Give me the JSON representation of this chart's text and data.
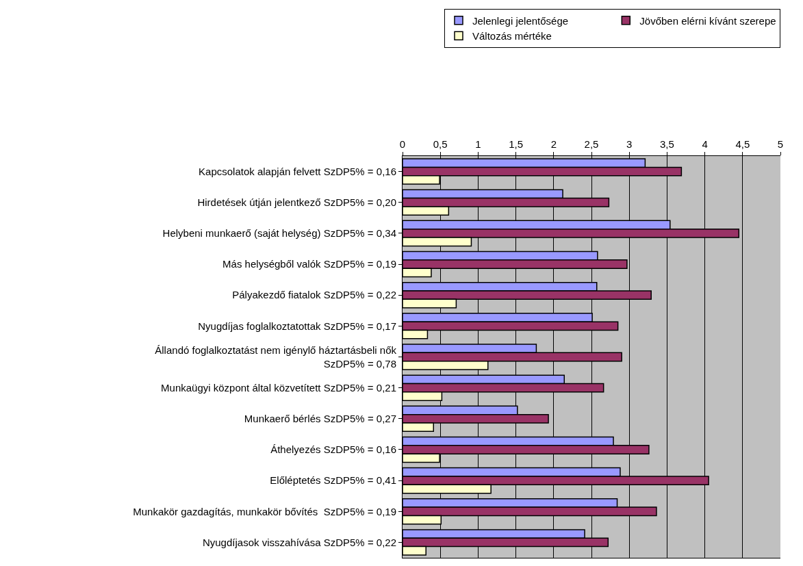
{
  "chart_data": {
    "type": "bar",
    "orientation": "horizontal",
    "categories": [
      "Kapcsolatok alapján felvett SzDP5% = 0,16",
      "Hirdetések útján jelentkező SzDP5% = 0,20",
      "Helybeni munkaerő (saját helység) SzDP5% = 0,34",
      "Más helységből valók SzDP5% = 0,19",
      "Pályakezdő fiatalok SzDP5% = 0,22",
      "Nyugdíjas foglalkoztatottak SzDP5% = 0,17",
      "Állandó foglalkoztatást nem igénylő háztartásbeli nők\nSzDP5% = 0,78",
      "Munkaügyi központ által közvetített SzDP5% = 0,21",
      "Munkaerő bérlés SzDP5% = 0,27",
      "Áthelyezés SzDP5% = 0,16",
      "Előléptetés SzDP5% = 0,41",
      "Munkakör gazdagítás, munkakör bővítés  SzDP5% = 0,19",
      "Nyugdíjasok visszahívása SzDP5% = 0,22"
    ],
    "series": [
      {
        "name": "Jelenlegi jelentősége",
        "color": "#9999ff",
        "values": [
          3.21,
          2.12,
          3.54,
          2.58,
          2.57,
          2.51,
          1.77,
          2.14,
          1.52,
          2.79,
          2.88,
          2.84,
          2.41
        ]
      },
      {
        "name": "Jövőben elérni kívánt szerepe",
        "color": "#993366",
        "values": [
          3.69,
          2.73,
          4.45,
          2.97,
          3.29,
          2.85,
          2.9,
          2.66,
          1.93,
          3.26,
          4.05,
          3.36,
          2.72
        ]
      },
      {
        "name": "Változás mértéke",
        "color": "#ffffcc",
        "values": [
          0.49,
          0.61,
          0.91,
          0.38,
          0.71,
          0.33,
          1.13,
          0.52,
          0.41,
          0.49,
          1.17,
          0.51,
          0.31
        ]
      }
    ],
    "xlim": [
      0,
      5
    ],
    "xticks": [
      0,
      {
        "value": 0.5,
        "label": "0,5"
      },
      1,
      {
        "value": 1.5,
        "label": "1,5"
      },
      2,
      {
        "value": 2.5,
        "label": "2,5"
      },
      3,
      {
        "value": 3.5,
        "label": "3,5"
      },
      4,
      {
        "value": 4.5,
        "label": "4,5"
      },
      5
    ],
    "grid": "x",
    "legend": "top right"
  }
}
